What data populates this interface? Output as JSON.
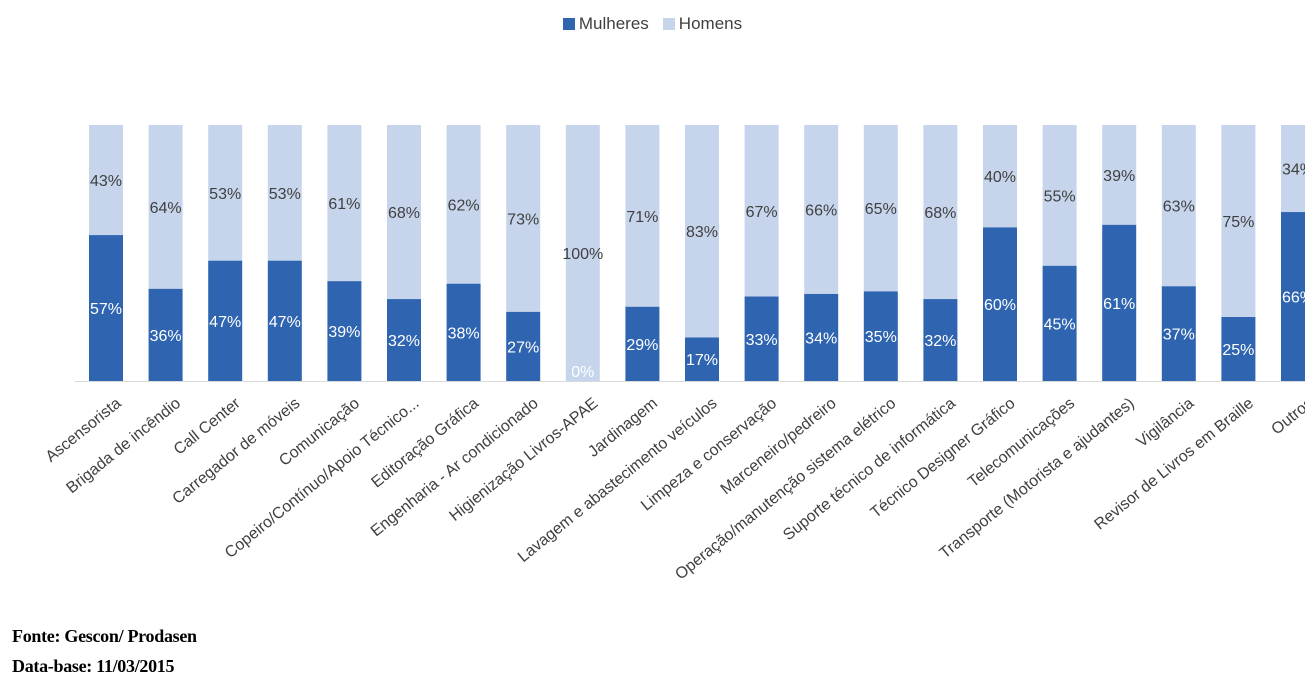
{
  "colors": {
    "mulheres": "#2E64B0",
    "homens": "#C6D5EC",
    "axis": "#d9d9d9",
    "label_dark": "#404040",
    "label_light": "#ffffff"
  },
  "legend": {
    "mulheres": "Mulheres",
    "homens": "Homens",
    "placement": "top-center"
  },
  "source": {
    "line1": "Fonte: Gescon/ Prodasen",
    "line2": "Data-base: 11/03/2015"
  },
  "chart_data": {
    "type": "bar",
    "stacked": true,
    "percent_stacked": true,
    "legend_placement": "top-center",
    "grid": false,
    "ylim": [
      0,
      100
    ],
    "categories": [
      "Ascensorista",
      "Brigada de incêndio",
      "Call Center",
      "Carregador de móveis",
      "Comunicação",
      "Copeiro/Contínuo/Apoio Técnico...",
      "Editoração Gráfica",
      "Engenharia - Ar condicionado",
      "Higienização Livros-APAE",
      "Jardinagem",
      "Lavagem e abastecimento veículos",
      "Limpeza e conservação",
      "Marceneiro/pedreiro",
      "Operação/manutenção sistema elétrico",
      "Suporte técnico de informática",
      "Técnico Designer Gráfico",
      "Telecomunicações",
      "Transporte (Motorista e ajudantes)",
      "Vigilância",
      "Revisor de Livros em Braille",
      "Outros"
    ],
    "series": [
      {
        "name": "Mulheres",
        "values": [
          57,
          36,
          47,
          47,
          39,
          32,
          38,
          27,
          0,
          29,
          17,
          33,
          34,
          35,
          32,
          60,
          45,
          61,
          37,
          25,
          66
        ],
        "labels": [
          "57%",
          "36%",
          "47%",
          "47%",
          "39%",
          "32%",
          "38%",
          "27%",
          "0%",
          "29%",
          "17%",
          "33%",
          "34%",
          "35%",
          "32%",
          "60%",
          "45%",
          "61%",
          "37%",
          "25%",
          "66%"
        ]
      },
      {
        "name": "Homens",
        "values": [
          43,
          64,
          53,
          53,
          61,
          68,
          62,
          73,
          100,
          71,
          83,
          67,
          66,
          65,
          68,
          40,
          55,
          39,
          63,
          75,
          34
        ],
        "labels": [
          "43%",
          "64%",
          "53%",
          "53%",
          "61%",
          "68%",
          "62%",
          "73%",
          "100%",
          "71%",
          "83%",
          "67%",
          "66%",
          "65%",
          "68%",
          "40%",
          "55%",
          "39%",
          "63%",
          "75%",
          "34%"
        ]
      }
    ]
  }
}
